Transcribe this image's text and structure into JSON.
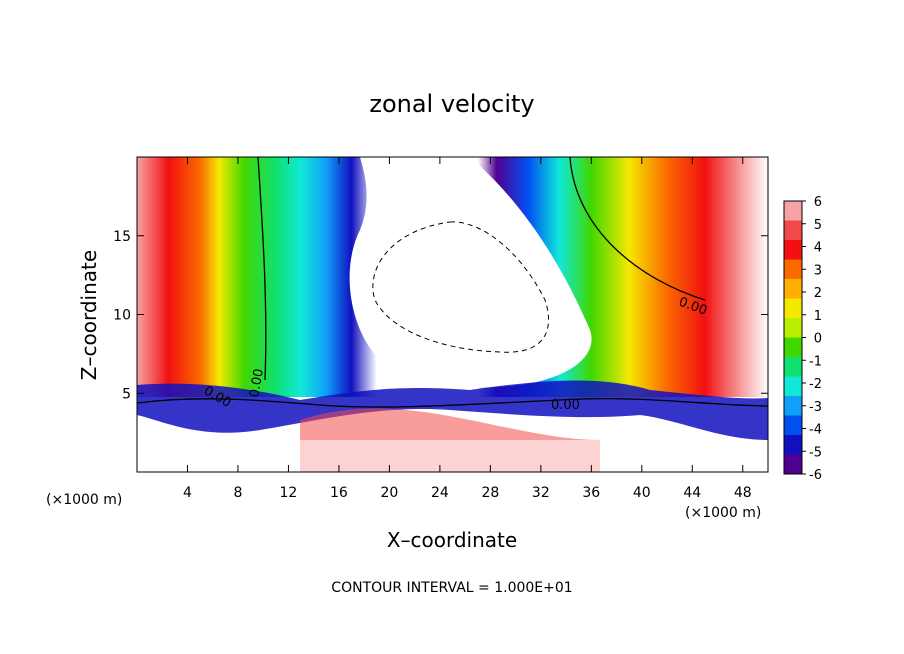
{
  "chart_data": {
    "type": "heatmap",
    "title": "zonal velocity",
    "xlabel": "X–coordinate",
    "ylabel": "Z–coordinate",
    "x_unit": "(×1000 m)",
    "y_unit": "(×1000 m)",
    "xlim": [
      0,
      50
    ],
    "ylim": [
      0,
      20
    ],
    "x_ticks": [
      4,
      8,
      12,
      16,
      20,
      24,
      28,
      32,
      36,
      40,
      44,
      48
    ],
    "y_ticks": [
      5,
      10,
      15
    ],
    "footer": "CONTOUR INTERVAL = 1.000E+01",
    "contour_label": "0.00",
    "colorbar": {
      "ticks": [
        6,
        5,
        4,
        3,
        2,
        1,
        0,
        -1,
        -2,
        -3,
        -4,
        -5,
        -6
      ],
      "colors": [
        "#f7a3a3",
        "#f24a4a",
        "#f21010",
        "#fa6a00",
        "#ffb000",
        "#f5e800",
        "#b8f000",
        "#40d800",
        "#10e070",
        "#10e8d8",
        "#10a0f8",
        "#0050f0",
        "#1010c0",
        "#500090"
      ]
    },
    "field_description_bands": [
      {
        "x": [
          0,
          6
        ],
        "value": 5
      },
      {
        "x": [
          6,
          9
        ],
        "value": 2
      },
      {
        "x": [
          9,
          12
        ],
        "value": 0
      },
      {
        "x": [
          12,
          17
        ],
        "value": -3
      },
      {
        "x": [
          17,
          27
        ],
        "value": -8
      },
      {
        "x": [
          27,
          33
        ],
        "value": -4
      },
      {
        "x": [
          33,
          40
        ],
        "value": 0
      },
      {
        "x": [
          40,
          46
        ],
        "value": 4
      },
      {
        "x": [
          46,
          50
        ],
        "value": 7
      }
    ],
    "lower_layer_value": -4
  }
}
